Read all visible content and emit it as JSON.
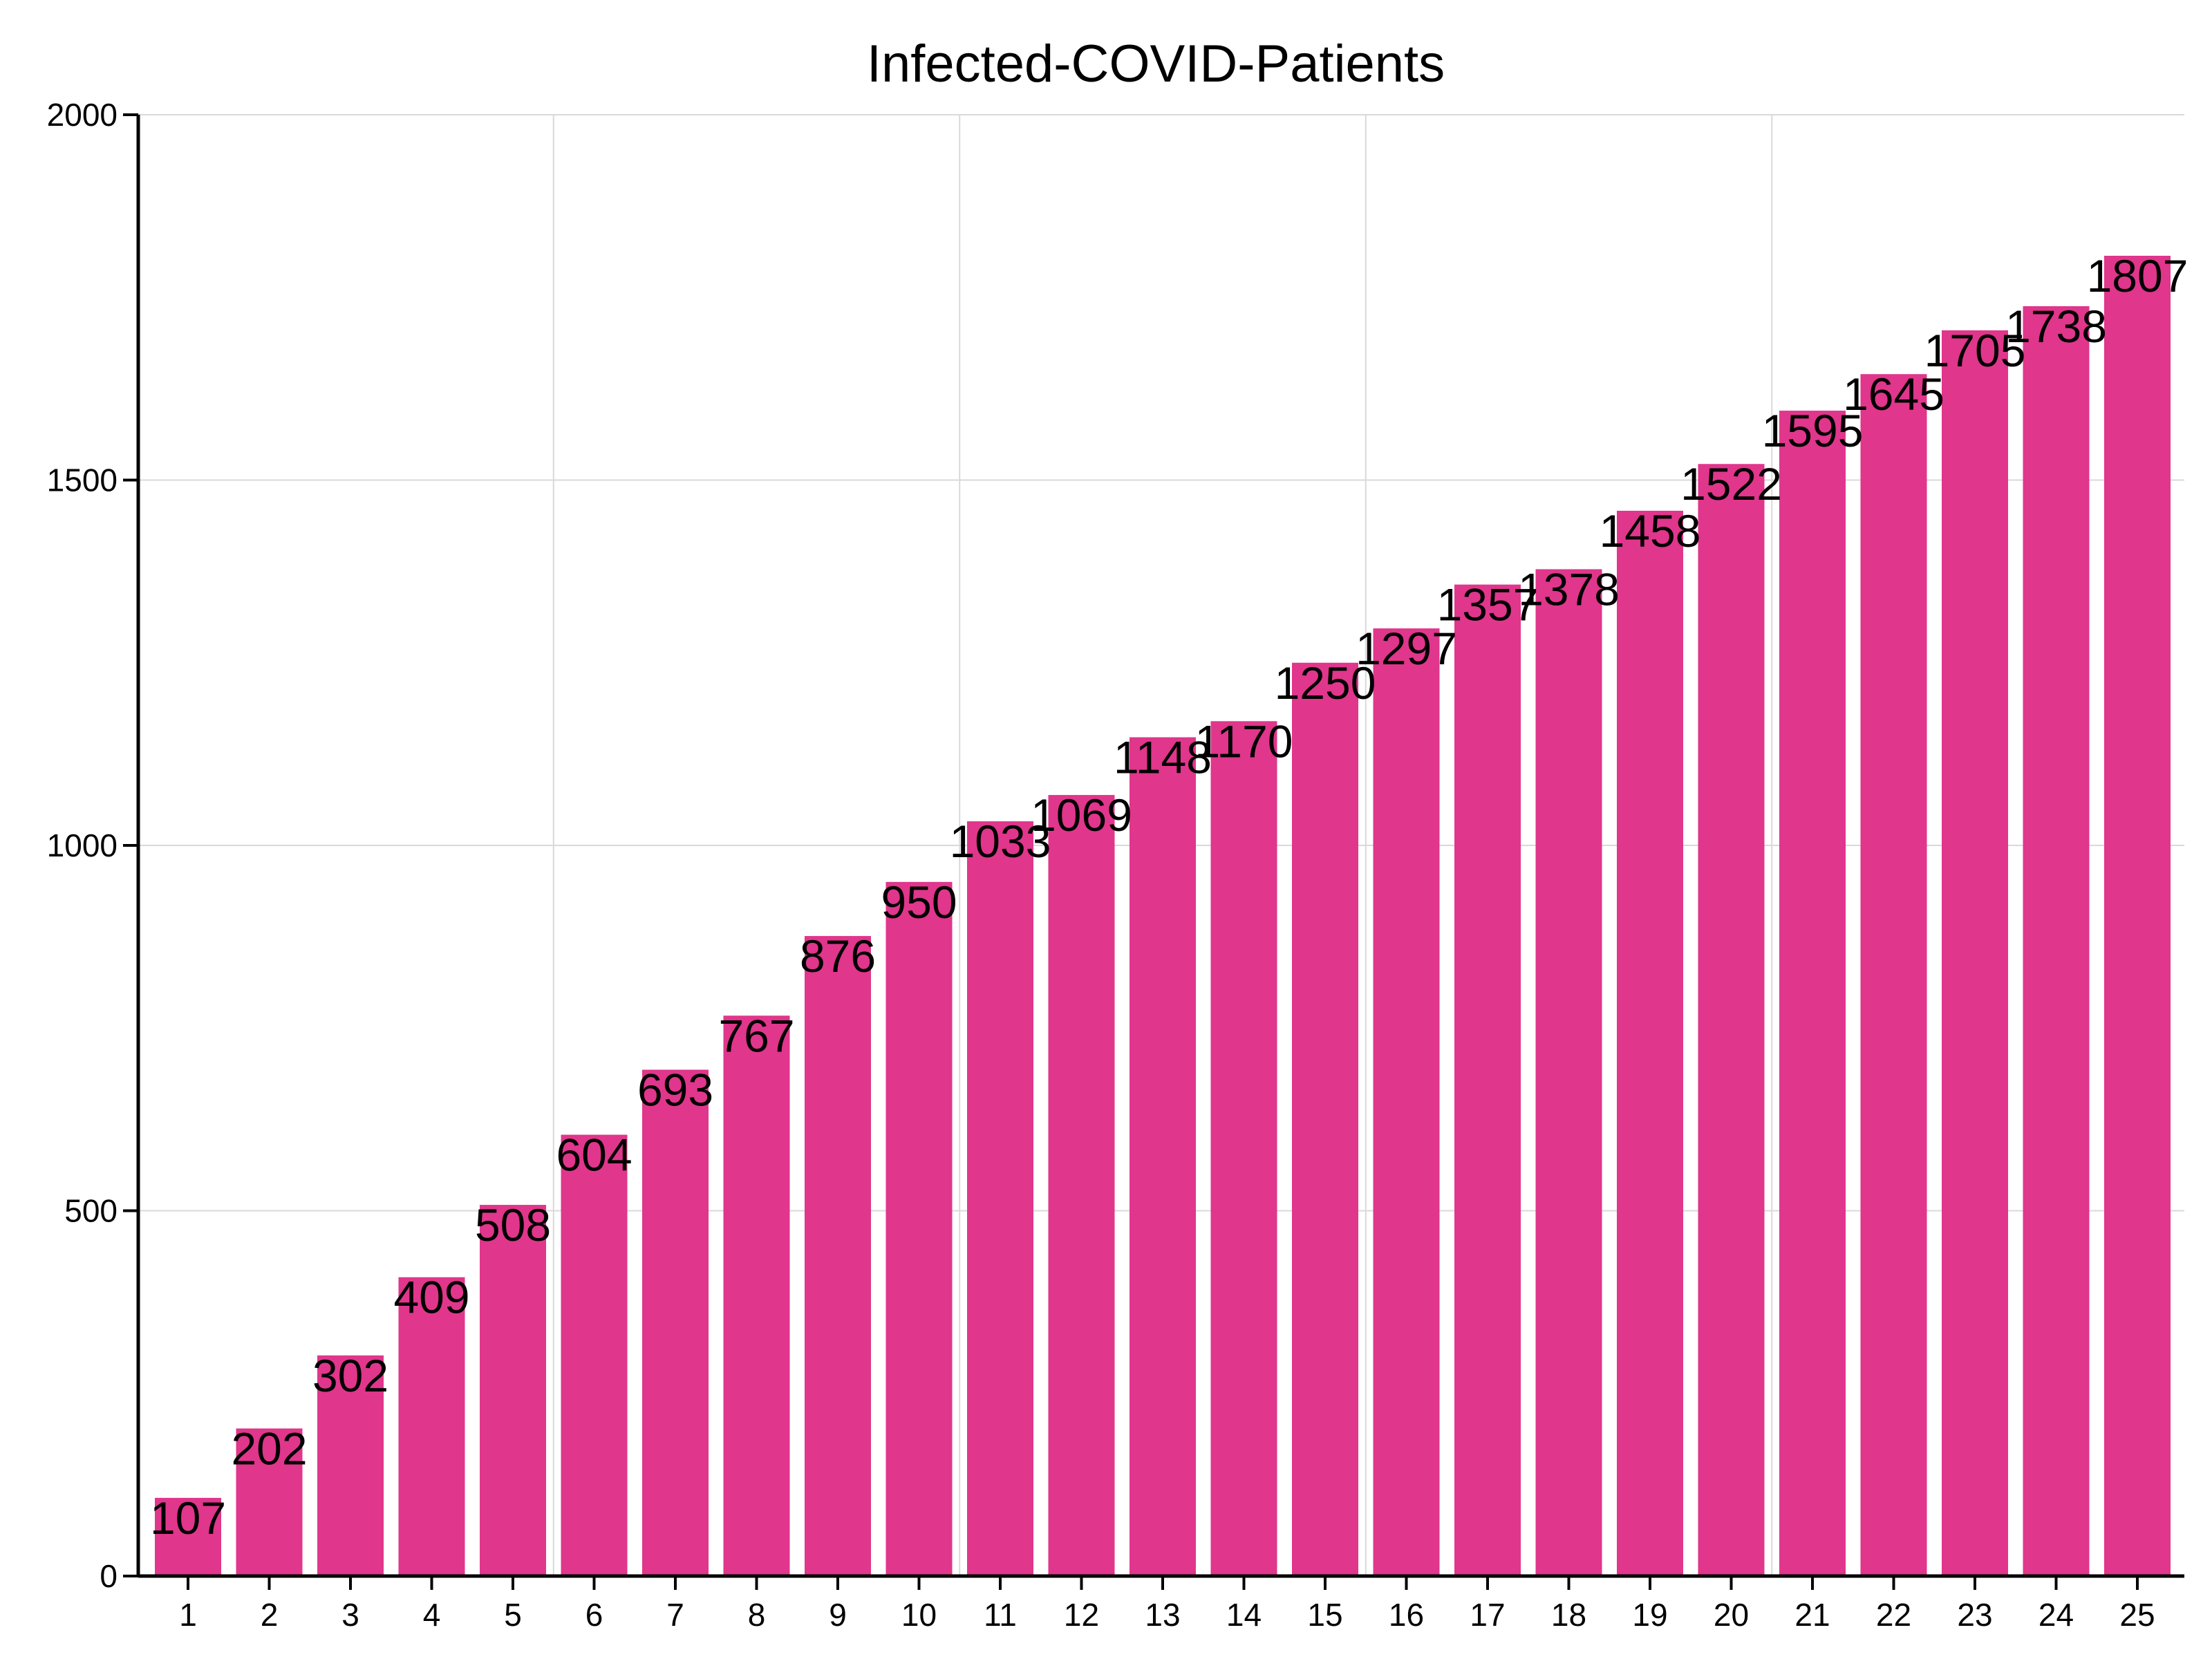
{
  "chart_data": {
    "type": "bar",
    "title": "Infected-COVID-Patients",
    "xlabel": "",
    "ylabel": "",
    "categories": [
      "1",
      "2",
      "3",
      "4",
      "5",
      "6",
      "7",
      "8",
      "9",
      "10",
      "11",
      "12",
      "13",
      "14",
      "15",
      "16",
      "17",
      "18",
      "19",
      "20",
      "21",
      "22",
      "23",
      "24",
      "25"
    ],
    "values": [
      107,
      202,
      302,
      409,
      508,
      604,
      693,
      767,
      876,
      950,
      1033,
      1069,
      1148,
      1170,
      1250,
      1297,
      1357,
      1378,
      1458,
      1522,
      1595,
      1645,
      1705,
      1738,
      1807
    ],
    "ylim": [
      0,
      2000
    ],
    "yticks": [
      0,
      500,
      1000,
      1500,
      2000
    ],
    "grid": true,
    "bar_color": "#e0368c",
    "legend": "none"
  }
}
